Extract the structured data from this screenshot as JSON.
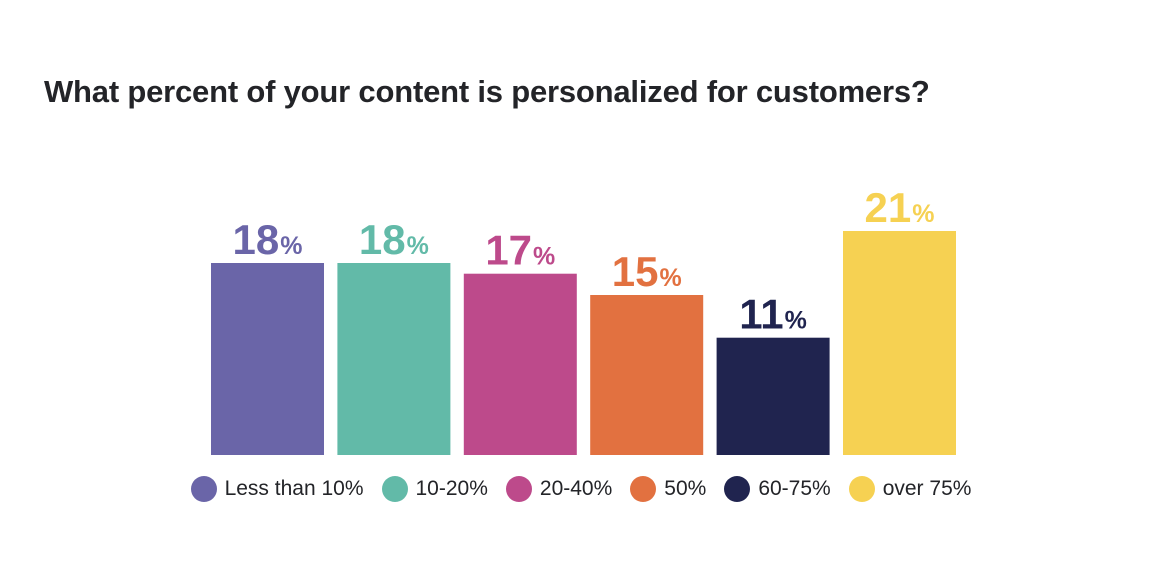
{
  "chart_data": {
    "type": "bar",
    "title": "What percent of your content is personalized for customers?",
    "categories": [
      "Less than 10%",
      "10-20%",
      "20-40%",
      "50%",
      "60-75%",
      "over 75%"
    ],
    "values": [
      18,
      18,
      17,
      15,
      11,
      21
    ],
    "value_labels": [
      "18",
      "18",
      "17",
      "15",
      "11",
      "21"
    ],
    "unit": "%",
    "colors": [
      "#6a65a8",
      "#62baa8",
      "#bd4a8b",
      "#e27140",
      "#20244f",
      "#f6d152"
    ],
    "ylim": [
      0,
      21.5
    ],
    "grid": false,
    "legend_position": "bottom"
  }
}
